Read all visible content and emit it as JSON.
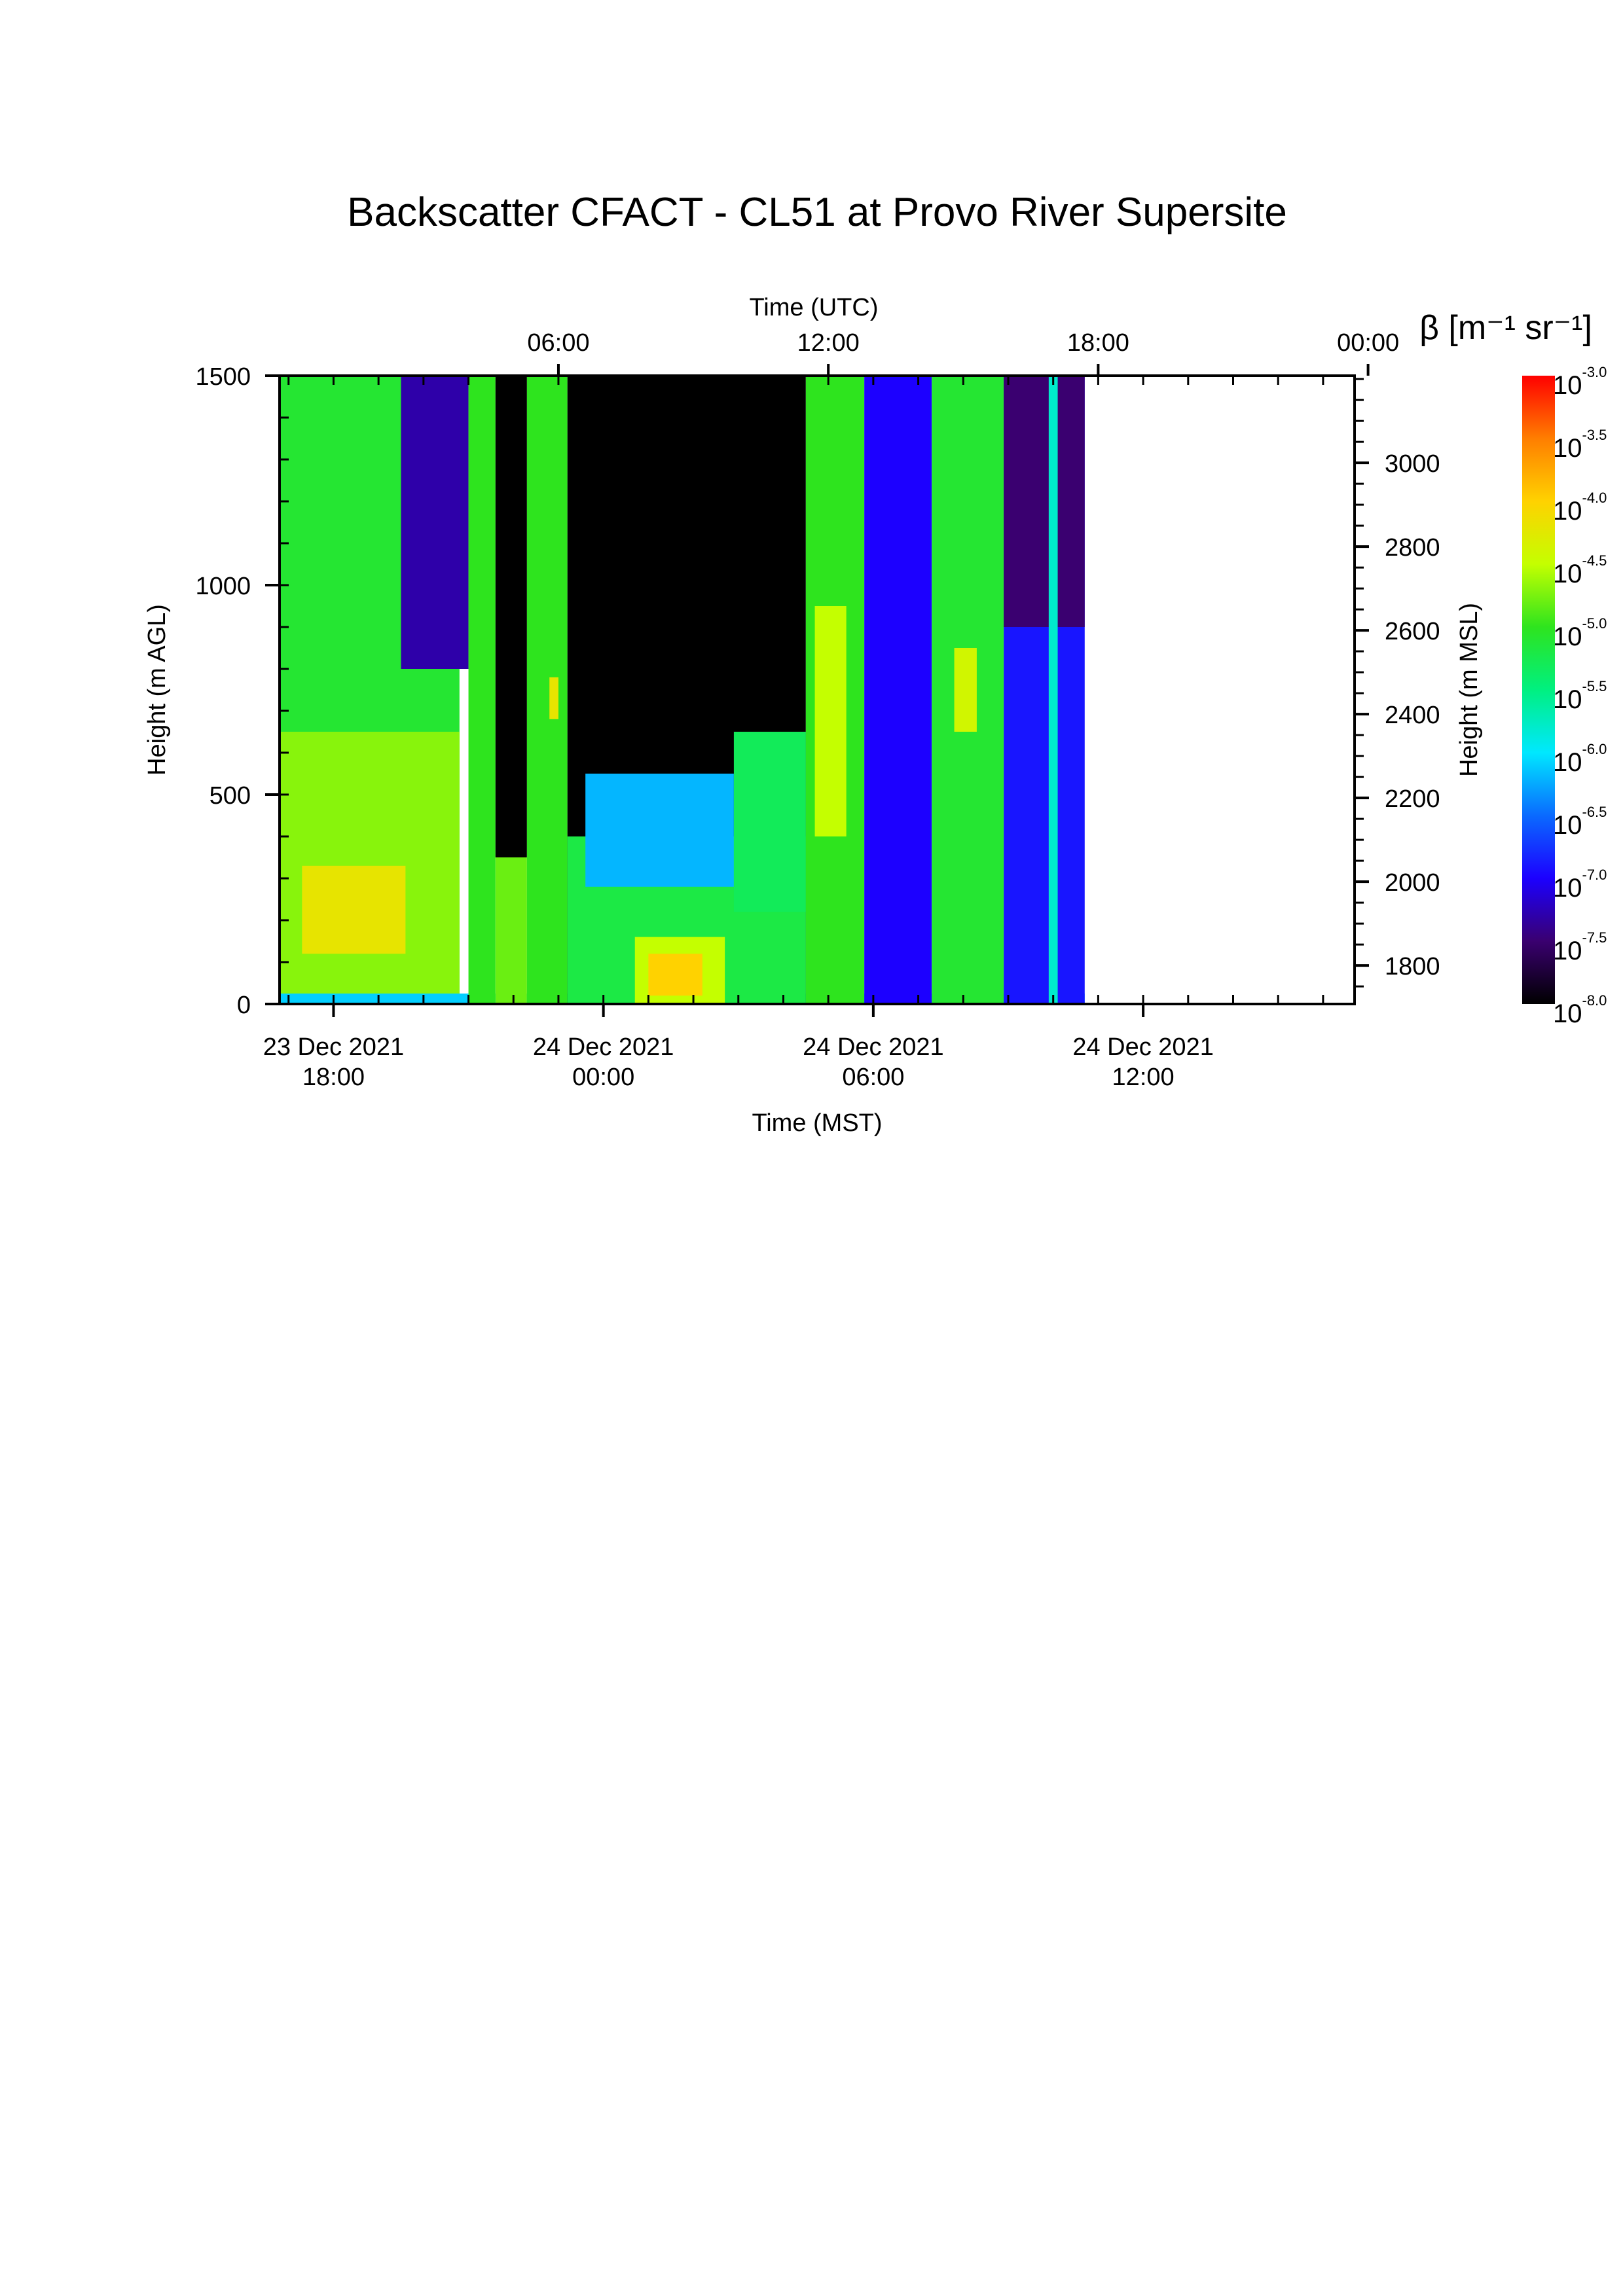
{
  "chart_data": {
    "type": "heatmap",
    "title": "Backscatter CFACT - CL51 at Provo River Supersite",
    "xlabel": "Time (MST)",
    "xlabel_top": "Time (UTC)",
    "ylabel": "Height (m AGL)",
    "ylabel_right": "Height (m MSL)",
    "xlim_mst_hours": [
      16.8,
      40.7
    ],
    "data_end_mst_hours": 34.7,
    "ylim": [
      0,
      1500
    ],
    "ylim_msl": [
      1708,
      3208
    ],
    "x_ticks_mst": [
      {
        "value": 18,
        "line1": "23 Dec 2021",
        "line2": "18:00"
      },
      {
        "value": 24,
        "line1": "24 Dec 2021",
        "line2": "00:00"
      },
      {
        "value": 30,
        "line1": "24 Dec 2021",
        "line2": "06:00"
      },
      {
        "value": 36,
        "line1": "24 Dec 2021",
        "line2": "12:00"
      }
    ],
    "x_ticks_utc": [
      {
        "value": 23,
        "label": "06:00"
      },
      {
        "value": 29,
        "label": "12:00"
      },
      {
        "value": 35,
        "label": "18:00"
      },
      {
        "value": 41,
        "label": "00:00"
      }
    ],
    "y_ticks": [
      0,
      500,
      1000,
      1500
    ],
    "y_ticks_msl": [
      1800,
      2000,
      2200,
      2400,
      2600,
      2800,
      3000
    ],
    "colorbar": {
      "label": "β [m⁻¹ sr⁻¹]",
      "base": "10",
      "exponents": [
        "-3.0",
        "-3.5",
        "-4.0",
        "-4.5",
        "-5.0",
        "-5.5",
        "-6.0",
        "-6.5",
        "-7.0",
        "-7.5",
        "-8.0"
      ],
      "log10_range": [
        -8.0,
        -3.0
      ],
      "colors": [
        "#000000",
        "#3a0070",
        "#1c00ff",
        "#0a6aff",
        "#00e8ff",
        "#00f080",
        "#2ee41e",
        "#c4ff00",
        "#ffd200",
        "#ff7e00",
        "#ff0000"
      ]
    },
    "layers": [
      {
        "t0": 16.8,
        "t1": 20.8,
        "h0": 0,
        "h1": 1500,
        "log_beta": -5.1
      },
      {
        "t0": 16.8,
        "t1": 20.8,
        "h0": 0,
        "h1": 650,
        "log_beta": -4.7
      },
      {
        "t0": 17.3,
        "t1": 19.6,
        "h0": 120,
        "h1": 330,
        "log_beta": -4.2
      },
      {
        "t0": 16.8,
        "t1": 34.7,
        "h0": 0,
        "h1": 25,
        "log_beta": -6.1
      },
      {
        "t0": 19.5,
        "t1": 21.0,
        "h0": 800,
        "h1": 1500,
        "log_beta": -7.3
      },
      {
        "t0": 21.0,
        "t1": 21.6,
        "h0": 0,
        "h1": 1500,
        "log_beta": -5.0
      },
      {
        "t0": 21.6,
        "t1": 22.3,
        "h0": 350,
        "h1": 1500,
        "log_beta": -8.0
      },
      {
        "t0": 21.6,
        "t1": 22.3,
        "h0": 0,
        "h1": 350,
        "log_beta": -4.8
      },
      {
        "t0": 22.3,
        "t1": 23.2,
        "h0": 0,
        "h1": 1500,
        "log_beta": -5.0
      },
      {
        "t0": 22.8,
        "t1": 23.0,
        "h0": 680,
        "h1": 780,
        "log_beta": -4.2
      },
      {
        "t0": 23.2,
        "t1": 28.5,
        "h0": 0,
        "h1": 1500,
        "log_beta": -8.0
      },
      {
        "t0": 23.2,
        "t1": 28.5,
        "h0": 0,
        "h1": 400,
        "log_beta": -5.2
      },
      {
        "t0": 23.6,
        "t1": 26.9,
        "h0": 280,
        "h1": 550,
        "log_beta": -6.2
      },
      {
        "t0": 24.7,
        "t1": 26.7,
        "h0": 0,
        "h1": 160,
        "log_beta": -4.5
      },
      {
        "t0": 25.0,
        "t1": 26.2,
        "h0": 20,
        "h1": 120,
        "log_beta": -4.0
      },
      {
        "t0": 26.9,
        "t1": 28.5,
        "h0": 220,
        "h1": 650,
        "log_beta": -5.3
      },
      {
        "t0": 28.5,
        "t1": 29.8,
        "h0": 0,
        "h1": 1500,
        "log_beta": -5.0
      },
      {
        "t0": 28.7,
        "t1": 29.4,
        "h0": 400,
        "h1": 950,
        "log_beta": -4.5
      },
      {
        "t0": 29.8,
        "t1": 31.3,
        "h0": 0,
        "h1": 1500,
        "log_beta": -7.0
      },
      {
        "t0": 31.3,
        "t1": 32.9,
        "h0": 0,
        "h1": 1500,
        "log_beta": -5.1
      },
      {
        "t0": 31.8,
        "t1": 32.3,
        "h0": 650,
        "h1": 850,
        "log_beta": -4.4
      },
      {
        "t0": 32.9,
        "t1": 34.7,
        "h0": 0,
        "h1": 1500,
        "log_beta": -6.9
      },
      {
        "t0": 32.9,
        "t1": 34.7,
        "h0": 900,
        "h1": 1500,
        "log_beta": -7.5
      },
      {
        "t0": 33.9,
        "t1": 34.1,
        "h0": 0,
        "h1": 1500,
        "log_beta": -5.8
      }
    ]
  }
}
